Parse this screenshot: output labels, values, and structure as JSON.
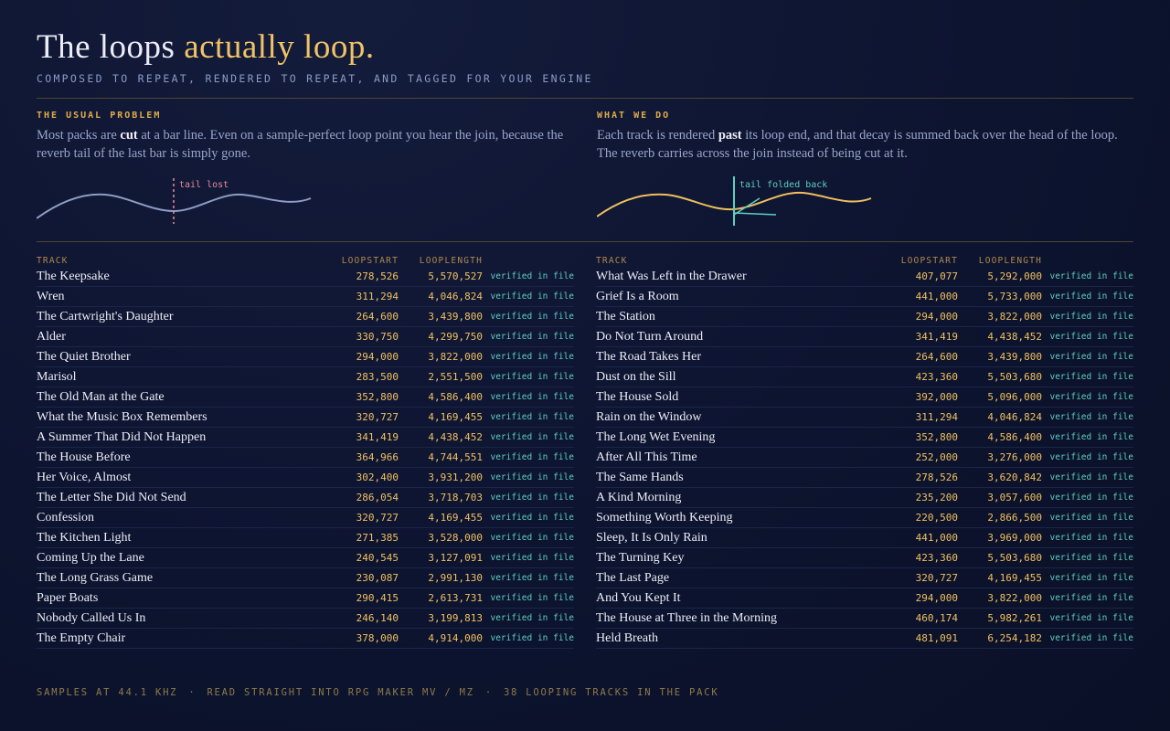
{
  "header": {
    "title_plain": "The loops",
    "title_accent": "actually loop.",
    "subtitle": "COMPOSED TO REPEAT, RENDERED TO REPEAT, AND TAGGED FOR YOUR ENGINE"
  },
  "panels": [
    {
      "label": "THE USUAL PROBLEM",
      "text_before": "Most packs are ",
      "text_strong": "cut",
      "text_after": " at a bar line. Even on a sample-perfect loop point you hear the join, because the reverb tail of the last bar is simply gone.",
      "diagram_label": "tail lost"
    },
    {
      "label": "WHAT WE DO",
      "text_before": "Each track is rendered ",
      "text_strong": "past",
      "text_after": " its loop end, and that decay is summed back over the head of the loop. The reverb carries across the join instead of being cut at it.",
      "diagram_label": "tail folded back"
    }
  ],
  "tables": [
    {
      "columns": [
        "TRACK",
        "LOOPSTART",
        "LOOPLENGTH"
      ],
      "rows": [
        [
          "The Keepsake",
          "278,526",
          "5,570,527",
          "verified in file"
        ],
        [
          "Wren",
          "311,294",
          "4,046,824",
          "verified in file"
        ],
        [
          "The Cartwright's Daughter",
          "264,600",
          "3,439,800",
          "verified in file"
        ],
        [
          "Alder",
          "330,750",
          "4,299,750",
          "verified in file"
        ],
        [
          "The Quiet Brother",
          "294,000",
          "3,822,000",
          "verified in file"
        ],
        [
          "Marisol",
          "283,500",
          "2,551,500",
          "verified in file"
        ],
        [
          "The Old Man at the Gate",
          "352,800",
          "4,586,400",
          "verified in file"
        ],
        [
          "What the Music Box Remembers",
          "320,727",
          "4,169,455",
          "verified in file"
        ],
        [
          "A Summer That Did Not Happen",
          "341,419",
          "4,438,452",
          "verified in file"
        ],
        [
          "The House Before",
          "364,966",
          "4,744,551",
          "verified in file"
        ],
        [
          "Her Voice, Almost",
          "302,400",
          "3,931,200",
          "verified in file"
        ],
        [
          "The Letter She Did Not Send",
          "286,054",
          "3,718,703",
          "verified in file"
        ],
        [
          "Confession",
          "320,727",
          "4,169,455",
          "verified in file"
        ],
        [
          "The Kitchen Light",
          "271,385",
          "3,528,000",
          "verified in file"
        ],
        [
          "Coming Up the Lane",
          "240,545",
          "3,127,091",
          "verified in file"
        ],
        [
          "The Long Grass Game",
          "230,087",
          "2,991,130",
          "verified in file"
        ],
        [
          "Paper Boats",
          "290,415",
          "2,613,731",
          "verified in file"
        ],
        [
          "Nobody Called Us In",
          "246,140",
          "3,199,813",
          "verified in file"
        ],
        [
          "The Empty Chair",
          "378,000",
          "4,914,000",
          "verified in file"
        ]
      ]
    },
    {
      "columns": [
        "TRACK",
        "LOOPSTART",
        "LOOPLENGTH"
      ],
      "rows": [
        [
          "What Was Left in the Drawer",
          "407,077",
          "5,292,000",
          "verified in file"
        ],
        [
          "Grief Is a Room",
          "441,000",
          "5,733,000",
          "verified in file"
        ],
        [
          "The Station",
          "294,000",
          "3,822,000",
          "verified in file"
        ],
        [
          "Do Not Turn Around",
          "341,419",
          "4,438,452",
          "verified in file"
        ],
        [
          "The Road Takes Her",
          "264,600",
          "3,439,800",
          "verified in file"
        ],
        [
          "Dust on the Sill",
          "423,360",
          "5,503,680",
          "verified in file"
        ],
        [
          "The House Sold",
          "392,000",
          "5,096,000",
          "verified in file"
        ],
        [
          "Rain on the Window",
          "311,294",
          "4,046,824",
          "verified in file"
        ],
        [
          "The Long Wet Evening",
          "352,800",
          "4,586,400",
          "verified in file"
        ],
        [
          "After All This Time",
          "252,000",
          "3,276,000",
          "verified in file"
        ],
        [
          "The Same Hands",
          "278,526",
          "3,620,842",
          "verified in file"
        ],
        [
          "A Kind Morning",
          "235,200",
          "3,057,600",
          "verified in file"
        ],
        [
          "Something Worth Keeping",
          "220,500",
          "2,866,500",
          "verified in file"
        ],
        [
          "Sleep, It Is Only Rain",
          "441,000",
          "3,969,000",
          "verified in file"
        ],
        [
          "The Turning Key",
          "423,360",
          "5,503,680",
          "verified in file"
        ],
        [
          "The Last Page",
          "320,727",
          "4,169,455",
          "verified in file"
        ],
        [
          "And You Kept It",
          "294,000",
          "3,822,000",
          "verified in file"
        ],
        [
          "The House at Three in the Morning",
          "460,174",
          "5,982,261",
          "verified in file"
        ],
        [
          "Held Breath",
          "481,091",
          "6,254,182",
          "verified in file"
        ]
      ]
    }
  ],
  "footer": {
    "items": [
      "SAMPLES AT 44.1 KHZ",
      "READ STRAIGHT INTO RPG MAKER MV / MZ",
      "38 LOOPING TRACKS IN THE PACK"
    ],
    "separator": "·"
  }
}
